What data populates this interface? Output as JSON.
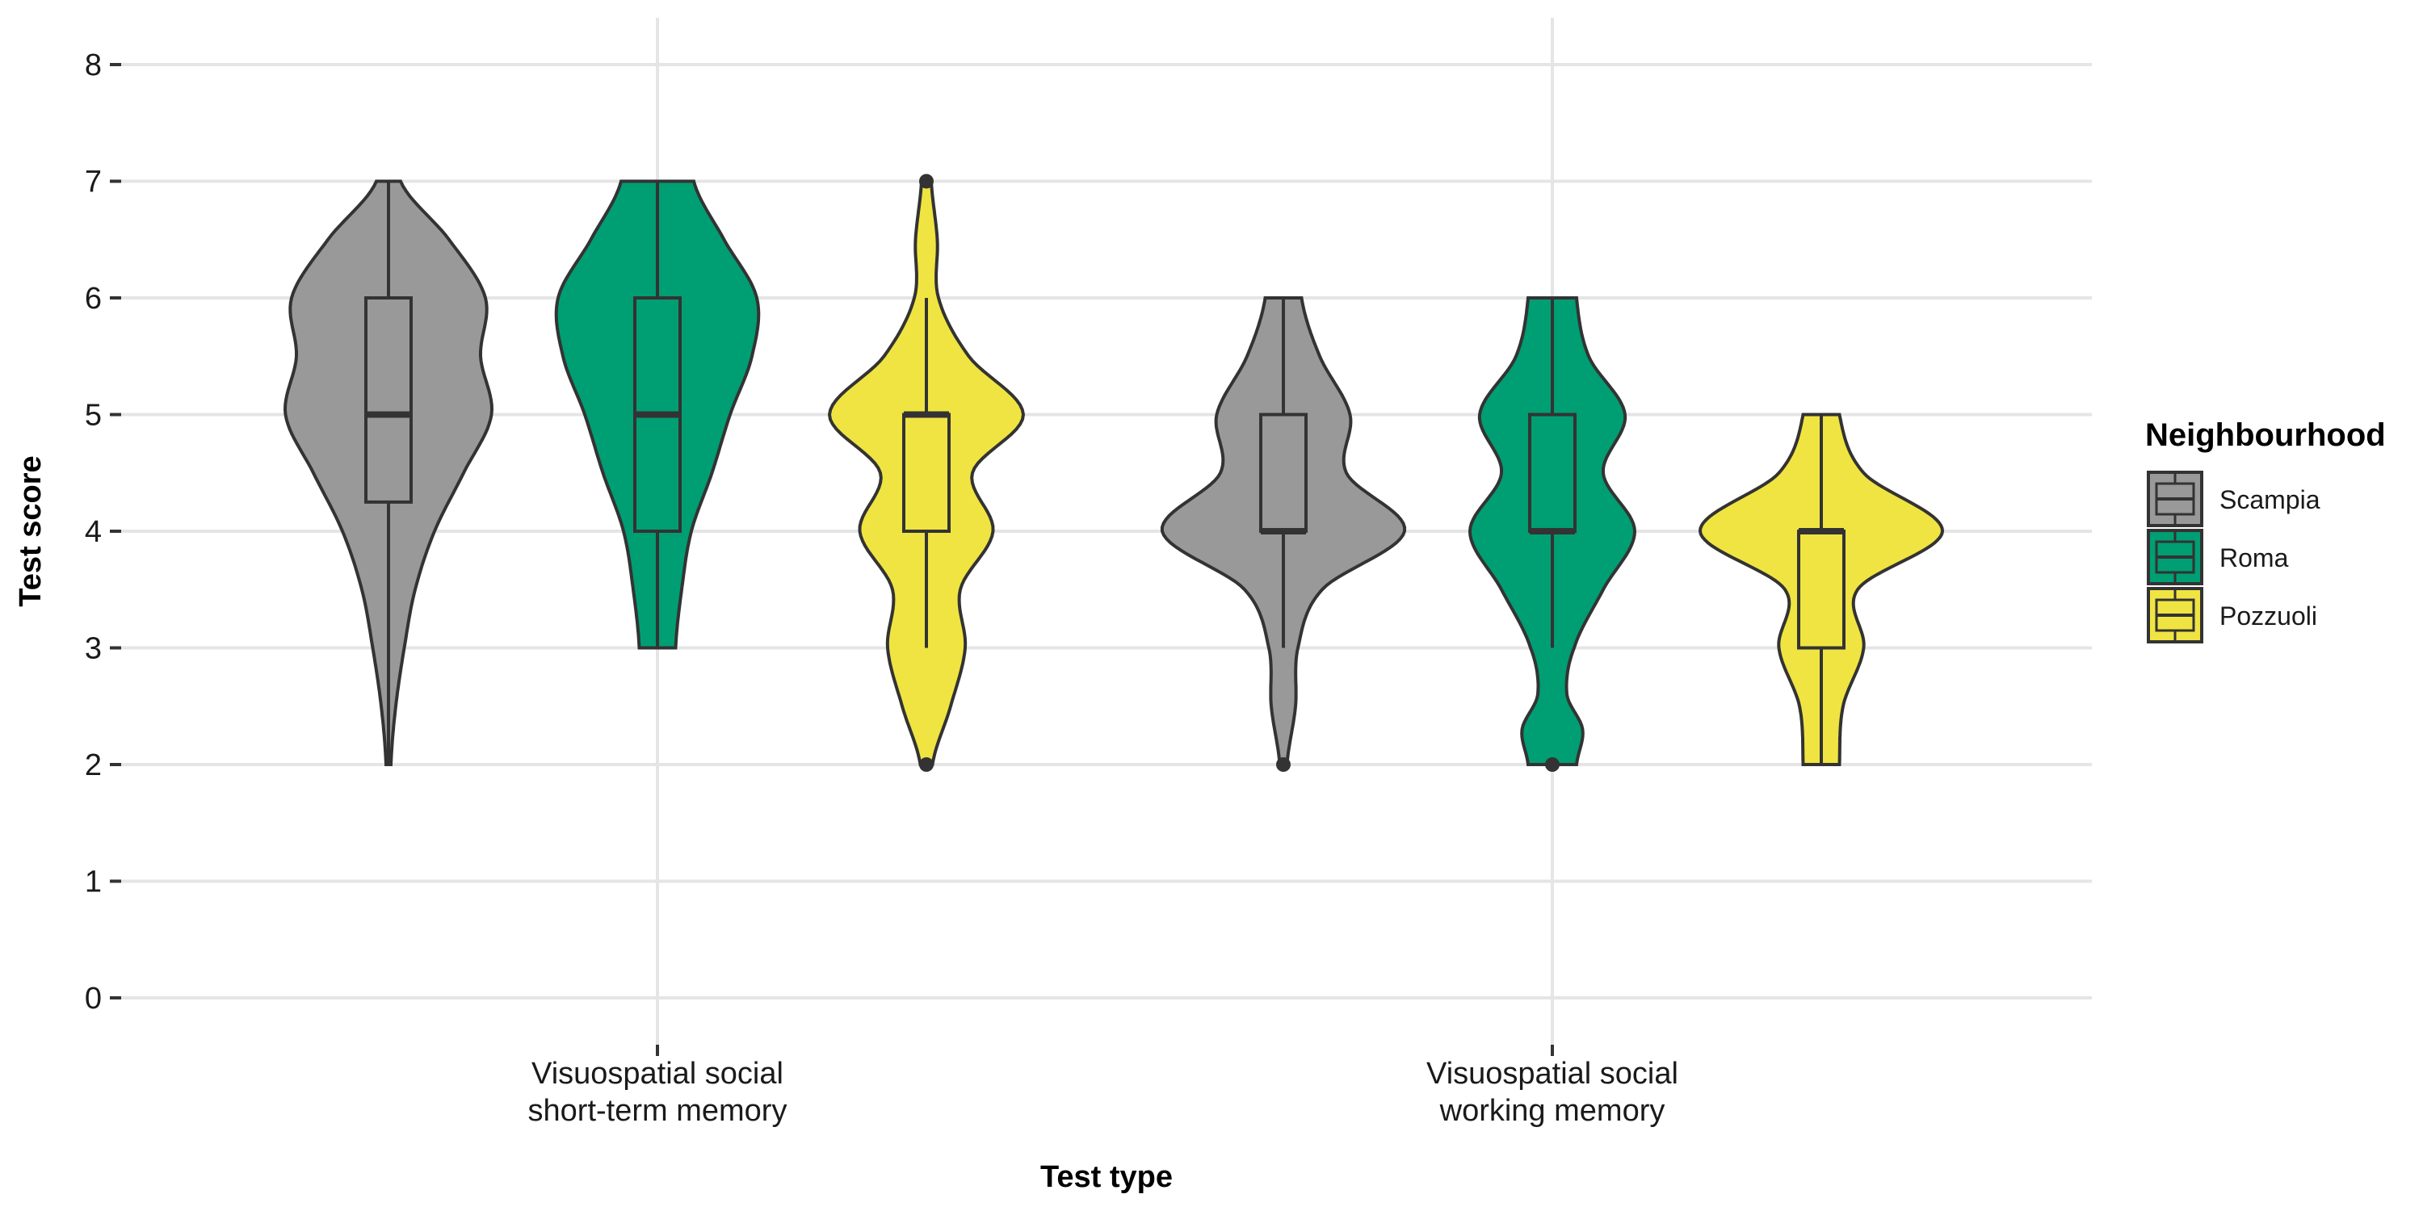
{
  "chart_data": {
    "type": "violin",
    "xlabel": "Test type",
    "ylabel": "Test score",
    "ylim": [
      0,
      8
    ],
    "y_ticks": [
      "0",
      "1",
      "2",
      "3",
      "4",
      "5",
      "6",
      "7",
      "8"
    ],
    "grid": true,
    "legend": {
      "title": "Neighbourhood",
      "position": "right"
    },
    "categories": [
      {
        "lines": [
          "Visuospatial social",
          "short-term memory"
        ]
      },
      {
        "lines": [
          "Visuospatial social",
          "working memory"
        ]
      }
    ],
    "series": [
      {
        "name": "Scampia",
        "color": "#999999",
        "groups": [
          {
            "category_index": 0,
            "box": {
              "q1": 4.25,
              "median": 5,
              "q3": 6,
              "whisker_low": 2,
              "whisker_high": 7
            },
            "outliers": [],
            "density": [
              [
                2,
                0.02
              ],
              [
                2.5,
                0.06
              ],
              [
                3,
                0.13
              ],
              [
                3.5,
                0.22
              ],
              [
                4,
                0.38
              ],
              [
                4.5,
                0.62
              ],
              [
                5,
                0.85
              ],
              [
                5.5,
                0.76
              ],
              [
                6,
                0.8
              ],
              [
                6.5,
                0.5
              ],
              [
                7,
                0.1
              ]
            ]
          },
          {
            "category_index": 1,
            "box": {
              "q1": 4,
              "median": 4,
              "q3": 5,
              "whisker_low": 3,
              "whisker_high": 6
            },
            "outliers": [
              2
            ],
            "density": [
              [
                2,
                0.03
              ],
              [
                2.5,
                0.1
              ],
              [
                3,
                0.12
              ],
              [
                3.5,
                0.32
              ],
              [
                4,
                1.0
              ],
              [
                4.5,
                0.52
              ],
              [
                5,
                0.55
              ],
              [
                5.5,
                0.3
              ],
              [
                6,
                0.15
              ]
            ]
          }
        ]
      },
      {
        "name": "Roma",
        "color": "#009E73",
        "groups": [
          {
            "category_index": 0,
            "box": {
              "q1": 4,
              "median": 5,
              "q3": 6,
              "whisker_low": 3,
              "whisker_high": 7
            },
            "outliers": [],
            "density": [
              [
                3,
                0.15
              ],
              [
                3.5,
                0.2
              ],
              [
                4,
                0.28
              ],
              [
                4.5,
                0.45
              ],
              [
                5,
                0.6
              ],
              [
                5.5,
                0.78
              ],
              [
                6,
                0.82
              ],
              [
                6.5,
                0.55
              ],
              [
                7,
                0.3
              ]
            ]
          },
          {
            "category_index": 1,
            "box": {
              "q1": 4,
              "median": 4,
              "q3": 5,
              "whisker_low": 3,
              "whisker_high": 6
            },
            "outliers": [
              2
            ],
            "density": [
              [
                2,
                0.2
              ],
              [
                2.3,
                0.25
              ],
              [
                2.6,
                0.12
              ],
              [
                3,
                0.18
              ],
              [
                3.5,
                0.42
              ],
              [
                4,
                0.68
              ],
              [
                4.5,
                0.42
              ],
              [
                5,
                0.6
              ],
              [
                5.5,
                0.3
              ],
              [
                6,
                0.2
              ]
            ]
          }
        ]
      },
      {
        "name": "Pozzuoli",
        "color": "#F0E442",
        "groups": [
          {
            "category_index": 0,
            "box": {
              "q1": 4,
              "median": 5,
              "q3": 5,
              "whisker_low": 3,
              "whisker_high": 6
            },
            "outliers": [
              2,
              7
            ],
            "density": [
              [
                2,
                0.05
              ],
              [
                2.5,
                0.2
              ],
              [
                3,
                0.32
              ],
              [
                3.5,
                0.28
              ],
              [
                4,
                0.55
              ],
              [
                4.5,
                0.38
              ],
              [
                5,
                0.8
              ],
              [
                5.5,
                0.35
              ],
              [
                6,
                0.1
              ],
              [
                6.5,
                0.09
              ],
              [
                7,
                0.04
              ]
            ]
          },
          {
            "category_index": 1,
            "box": {
              "q1": 3,
              "median": 4,
              "q3": 4,
              "whisker_low": 2,
              "whisker_high": 5
            },
            "outliers": [],
            "density": [
              [
                2,
                0.15
              ],
              [
                2.5,
                0.18
              ],
              [
                3,
                0.35
              ],
              [
                3.5,
                0.3
              ],
              [
                4,
                1.0
              ],
              [
                4.5,
                0.35
              ],
              [
                5,
                0.15
              ]
            ]
          }
        ]
      }
    ]
  }
}
